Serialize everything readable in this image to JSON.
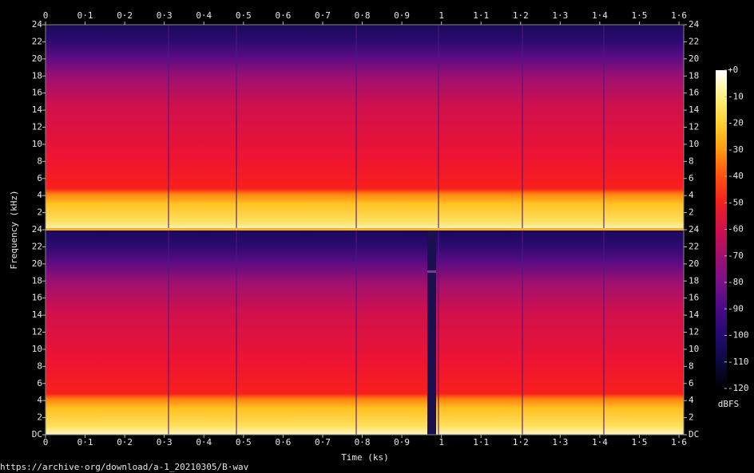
{
  "chart_data": {
    "type": "spectrogram",
    "xlabel": "Time (ks)",
    "ylabel": "Frequency (kHz)",
    "source": "https://archive·org/download/a-1_20210305/B·wav",
    "xlim": [
      0,
      1.612
    ],
    "xticks": [
      0,
      {
        "value": 0.1,
        "label": "0·1"
      },
      {
        "value": 0.2,
        "label": "0·2"
      },
      {
        "value": 0.3,
        "label": "0·3"
      },
      {
        "value": 0.4,
        "label": "0·4"
      },
      {
        "value": 0.5,
        "label": "0·5"
      },
      {
        "value": 0.6,
        "label": "0·6"
      },
      {
        "value": 0.7,
        "label": "0·7"
      },
      {
        "value": 0.8,
        "label": "0·8"
      },
      {
        "value": 0.9,
        "label": "0·9"
      },
      1,
      {
        "value": 1.1,
        "label": "1·1"
      },
      {
        "value": 1.2,
        "label": "1·2"
      },
      {
        "value": 1.3,
        "label": "1·3"
      },
      {
        "value": 1.4,
        "label": "1·4"
      },
      {
        "value": 1.5,
        "label": "1·5"
      },
      {
        "value": 1.6,
        "label": "1·6"
      }
    ],
    "ylim": [
      0,
      24
    ],
    "yticks": [
      {
        "value": 0,
        "label": "DC"
      },
      2,
      4,
      6,
      8,
      10,
      12,
      14,
      16,
      18,
      20,
      22,
      24
    ],
    "colorbar": {
      "label": "dBFS",
      "lim": [
        -120,
        0
      ],
      "ticks": [
        {
          "value": 0,
          "label": "+0"
        },
        -10,
        -20,
        -30,
        -40,
        -50,
        -60,
        -70,
        -80,
        -90,
        -100,
        -110,
        -120
      ],
      "colormap": [
        "#000000",
        "#0c0a40",
        "#220a70",
        "#4a0a88",
        "#78108a",
        "#a01070",
        "#d0104a",
        "#f02020",
        "#ff5010",
        "#ff9a10",
        "#ffd030",
        "#fff080",
        "#ffffff"
      ]
    }
  }
}
